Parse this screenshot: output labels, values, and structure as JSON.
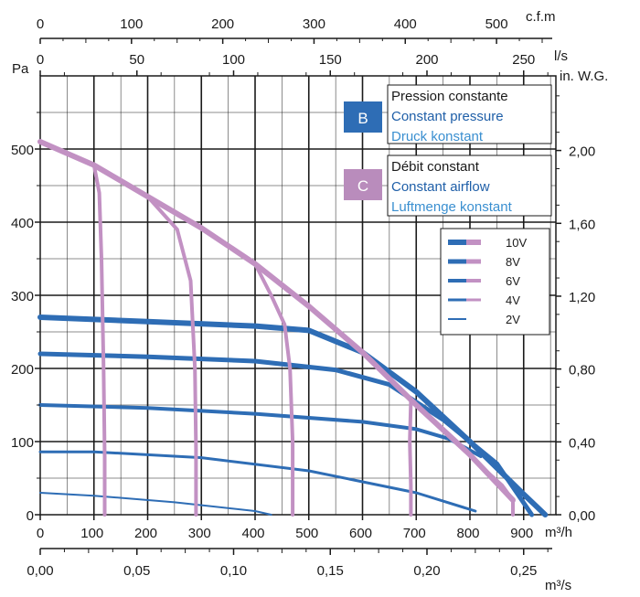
{
  "chart_data": {
    "type": "line",
    "axes": {
      "bottom_m3h": {
        "unit": "m³/h",
        "ticks": [
          "0",
          "100",
          "200",
          "300",
          "400",
          "500",
          "600",
          "700",
          "800",
          "900"
        ],
        "range": [
          0,
          960
        ]
      },
      "bottom_m3s": {
        "unit": "m³/s",
        "ticks": [
          "0,00",
          "0,05",
          "0,10",
          "0,15",
          "0,20",
          "0,25"
        ]
      },
      "top_cfm": {
        "unit": "c.f.m",
        "ticks": [
          "0",
          "100",
          "200",
          "300",
          "400",
          "500"
        ]
      },
      "top_ls": {
        "unit": "l/s",
        "ticks": [
          "0",
          "50",
          "100",
          "150",
          "200",
          "250"
        ]
      },
      "left_pa": {
        "unit": "Pa",
        "ticks": [
          "0",
          "100",
          "200",
          "300",
          "400",
          "500"
        ],
        "range": [
          0,
          600
        ]
      },
      "right_inwg": {
        "unit": "in. W.G.",
        "ticks": [
          "0,00",
          "0,40",
          "0,80",
          "1,20",
          "1,60",
          "2,00"
        ]
      }
    },
    "legend_boxes": [
      {
        "badge": "B",
        "color": "#2e6db5",
        "lines": [
          "Pression constante",
          "Constant pressure",
          "Druck konstant"
        ]
      },
      {
        "badge": "C",
        "color": "#b98cbc",
        "lines": [
          "Débit constant",
          "Constant airflow",
          "Luftmenge konstant"
        ]
      }
    ],
    "voltage_legend": [
      "10V",
      "8V",
      "6V",
      "4V",
      "2V"
    ],
    "colors": {
      "constant_pressure": "#2e6db5",
      "constant_airflow": "#c291c3",
      "grid": "#1a1a1a"
    },
    "series": [
      {
        "group": "constant_pressure",
        "label": "10V",
        "width": 6,
        "points": [
          [
            0,
            270
          ],
          [
            200,
            264
          ],
          [
            400,
            258
          ],
          [
            500,
            252
          ],
          [
            600,
            222
          ],
          [
            700,
            168
          ],
          [
            800,
            100
          ],
          [
            900,
            28
          ],
          [
            940,
            0
          ]
        ]
      },
      {
        "group": "constant_pressure",
        "label": "8V",
        "width": 5,
        "points": [
          [
            0,
            220
          ],
          [
            200,
            216
          ],
          [
            400,
            210
          ],
          [
            550,
            198
          ],
          [
            650,
            178
          ],
          [
            750,
            130
          ],
          [
            850,
            70
          ],
          [
            915,
            0
          ]
        ]
      },
      {
        "group": "constant_pressure",
        "label": "6V",
        "width": 4,
        "points": [
          [
            0,
            150
          ],
          [
            200,
            146
          ],
          [
            400,
            138
          ],
          [
            600,
            127
          ],
          [
            700,
            117
          ],
          [
            760,
            104
          ],
          [
            820,
            80
          ]
        ]
      },
      {
        "group": "constant_pressure",
        "label": "4V",
        "width": 3,
        "points": [
          [
            0,
            86
          ],
          [
            100,
            86
          ],
          [
            300,
            78
          ],
          [
            500,
            60
          ],
          [
            700,
            30
          ],
          [
            810,
            5
          ]
        ]
      },
      {
        "group": "constant_pressure",
        "label": "2V",
        "width": 2,
        "points": [
          [
            0,
            30
          ],
          [
            100,
            26
          ],
          [
            250,
            17
          ],
          [
            400,
            5
          ],
          [
            430,
            0
          ]
        ]
      },
      {
        "group": "constant_airflow",
        "label": "envelope",
        "width": 6,
        "points": [
          [
            0,
            510
          ],
          [
            100,
            478
          ],
          [
            200,
            435
          ],
          [
            300,
            392
          ],
          [
            400,
            343
          ],
          [
            500,
            285
          ],
          [
            600,
            222
          ],
          [
            700,
            150
          ],
          [
            800,
            82
          ],
          [
            880,
            20
          ]
        ]
      },
      {
        "group": "constant_airflow",
        "label": "flow-120",
        "width": 4,
        "points": [
          [
            100,
            478
          ],
          [
            110,
            440
          ],
          [
            114,
            350
          ],
          [
            118,
            200
          ],
          [
            120,
            80
          ],
          [
            120,
            0
          ]
        ]
      },
      {
        "group": "constant_airflow",
        "label": "flow-290",
        "width": 4,
        "points": [
          [
            200,
            435
          ],
          [
            255,
            390
          ],
          [
            280,
            320
          ],
          [
            288,
            200
          ],
          [
            290,
            90
          ],
          [
            290,
            0
          ]
        ]
      },
      {
        "group": "constant_airflow",
        "label": "flow-470",
        "width": 4,
        "points": [
          [
            400,
            343
          ],
          [
            430,
            300
          ],
          [
            455,
            260
          ],
          [
            465,
            200
          ],
          [
            470,
            100
          ],
          [
            470,
            0
          ]
        ]
      },
      {
        "group": "constant_airflow",
        "label": "flow-690",
        "width": 4,
        "points": [
          [
            690,
            155
          ],
          [
            688,
            100
          ],
          [
            690,
            40
          ],
          [
            690,
            0
          ]
        ]
      },
      {
        "group": "constant_airflow",
        "label": "flow-880",
        "width": 4,
        "points": [
          [
            830,
            60
          ],
          [
            860,
            40
          ],
          [
            880,
            20
          ],
          [
            880,
            0
          ]
        ]
      }
    ]
  }
}
